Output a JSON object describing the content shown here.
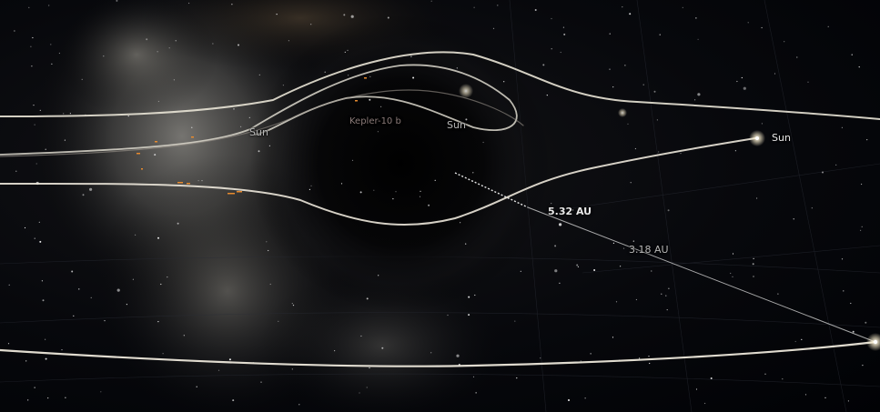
{
  "labels": {
    "sun_left": "Sun",
    "sun_center": "Sun",
    "sun_right": "Sun",
    "planet": "Kepler-10 b",
    "distance_primary": "5.32 AU",
    "distance_secondary": "3.18 AU"
  },
  "colors": {
    "orbit_line": "#e9e4d6",
    "orbit_line_faint": "#8f8a84",
    "distance_line": "#d8d8d8",
    "planet_label": "#8a7a78",
    "star_glow": "#fff6e0",
    "marker_orange": "#e68a2e"
  },
  "icons": {
    "sun_marker": "star-glow-icon",
    "observer_marker": "star-glow-icon"
  }
}
